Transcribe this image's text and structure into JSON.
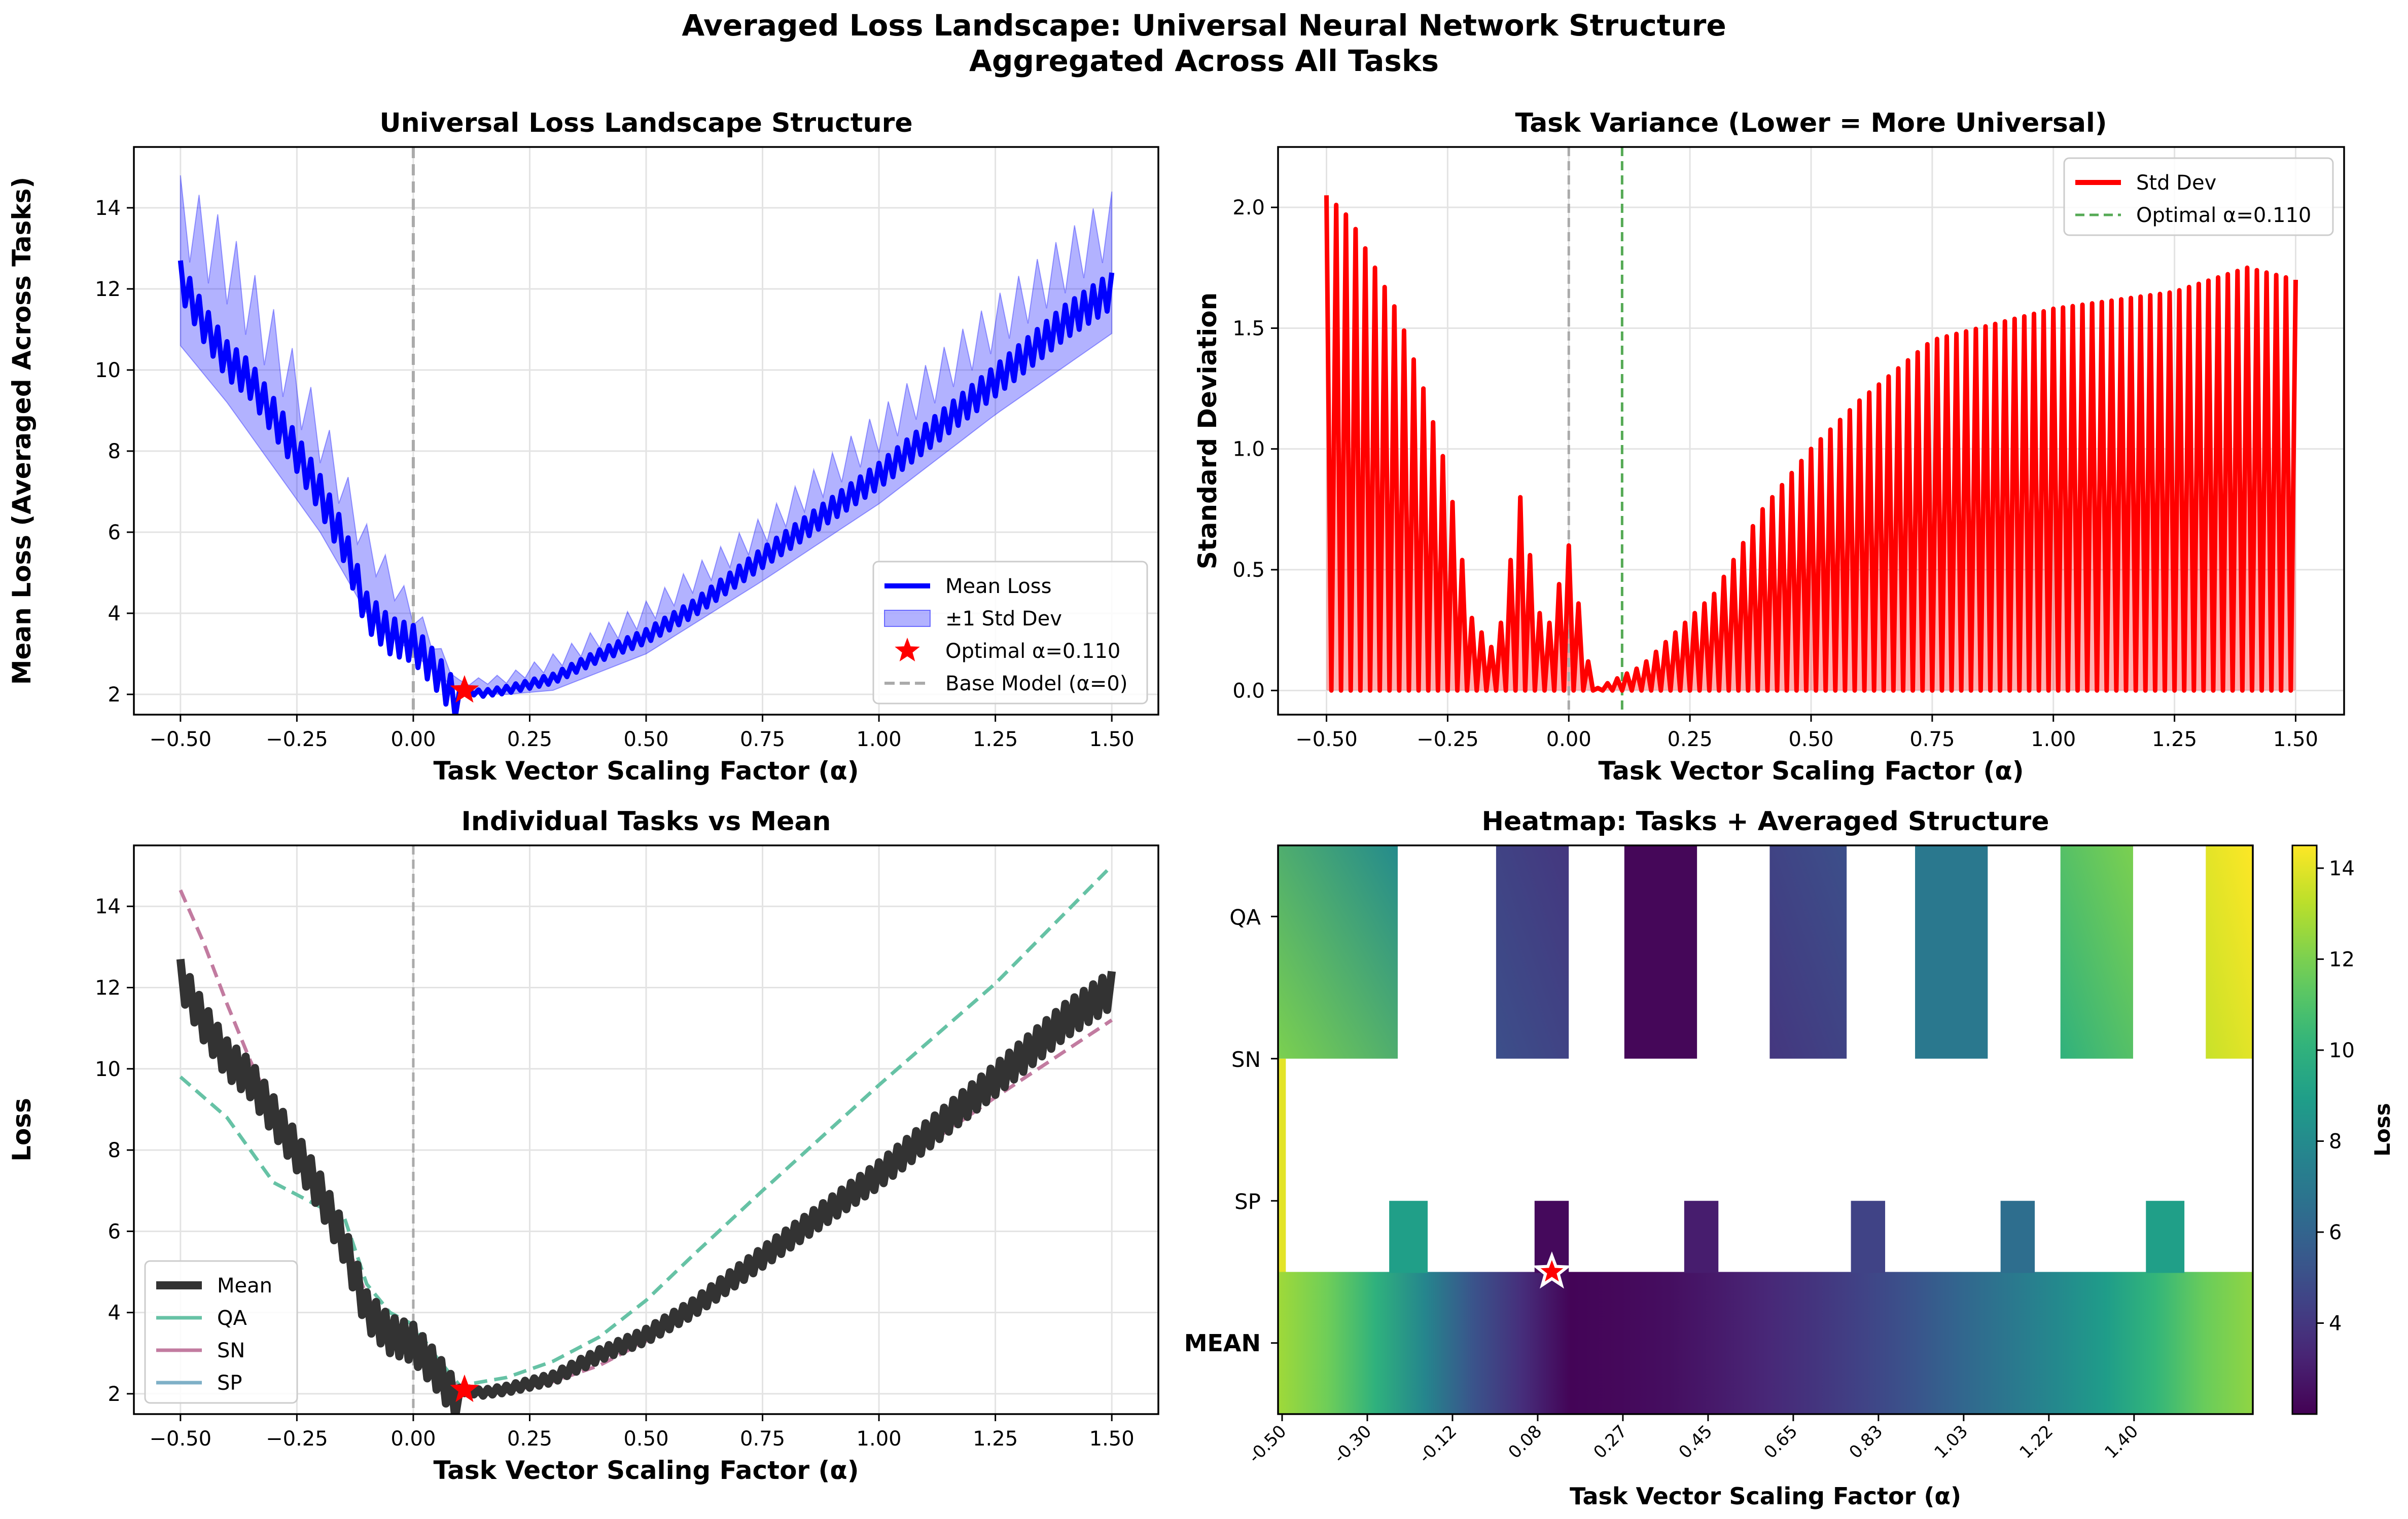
{
  "figure": {
    "title_line1": "Averaged Loss Landscape: Universal Neural Network Structure",
    "title_line2": "Aggregated Across All Tasks"
  },
  "chart_data": [
    {
      "type": "line",
      "title": "Universal Loss Landscape Structure",
      "xlabel": "Task Vector Scaling Factor (α)",
      "ylabel": "Mean Loss (Averaged Across Tasks)",
      "xlim": [
        -0.6,
        1.6
      ],
      "ylim": [
        1.5,
        15.5
      ],
      "xticks": [
        -0.5,
        -0.25,
        0.0,
        0.25,
        0.5,
        0.75,
        1.0,
        1.25,
        1.5
      ],
      "xtick_labels": [
        "−0.50",
        "−0.25",
        "0.00",
        "0.25",
        "0.50",
        "0.75",
        "1.00",
        "1.25",
        "1.50"
      ],
      "yticks": [
        2,
        4,
        6,
        8,
        10,
        12,
        14
      ],
      "ytick_labels": [
        "2",
        "4",
        "6",
        "8",
        "10",
        "12",
        "14"
      ],
      "grid": true,
      "legend_position": "lower-right",
      "series": [
        {
          "name": "Mean Loss",
          "color": "#0000ff",
          "style": "solid",
          "x": [
            -0.5,
            -0.45,
            -0.4,
            -0.35,
            -0.3,
            -0.25,
            -0.2,
            -0.15,
            -0.1,
            -0.05,
            0.0,
            0.05,
            0.1,
            0.15,
            0.2,
            0.3,
            0.4,
            0.5,
            0.6,
            0.75,
            1.0,
            1.25,
            1.4,
            1.5
          ],
          "y": [
            12.7,
            11.6,
            10.7,
            10.2,
            9.3,
            8.4,
            7.4,
            6.2,
            4.5,
            3.9,
            3.7,
            3.0,
            2.15,
            2.1,
            2.2,
            2.5,
            3.1,
            3.6,
            4.3,
            5.6,
            7.7,
            10.1,
            11.6,
            12.4
          ]
        },
        {
          "name": "±1 Std Dev",
          "color": "#0000ff",
          "style": "band",
          "x": [
            -0.5,
            -0.4,
            -0.3,
            -0.2,
            -0.1,
            0.0,
            0.1,
            0.2,
            0.3,
            0.5,
            0.75,
            1.0,
            1.25,
            1.5
          ],
          "upper": [
            14.8,
            13.6,
            11.5,
            9.1,
            6.2,
            4.3,
            2.35,
            2.5,
            3.0,
            4.3,
            6.4,
            9.0,
            11.8,
            14.4
          ],
          "lower": [
            10.6,
            9.2,
            7.6,
            6.0,
            4.0,
            3.0,
            2.05,
            2.0,
            2.1,
            3.0,
            4.8,
            6.7,
            8.9,
            10.9
          ]
        },
        {
          "name": "Optimal α=0.110",
          "color": "#ff0000",
          "style": "star",
          "x": [
            0.11
          ],
          "y": [
            2.1
          ]
        },
        {
          "name": "Base Model (α=0)",
          "color": "#aaaaaa",
          "style": "dashed-vline",
          "x": [
            0.0
          ]
        }
      ]
    },
    {
      "type": "area",
      "title": "Task Variance (Lower = More Universal)",
      "xlabel": "Task Vector Scaling Factor (α)",
      "ylabel": "Standard Deviation",
      "xlim": [
        -0.6,
        1.6
      ],
      "ylim": [
        -0.1,
        2.25
      ],
      "xticks": [
        -0.5,
        -0.25,
        0.0,
        0.25,
        0.5,
        0.75,
        1.0,
        1.25,
        1.5
      ],
      "xtick_labels": [
        "−0.50",
        "−0.25",
        "0.00",
        "0.25",
        "0.50",
        "0.75",
        "1.00",
        "1.25",
        "1.50"
      ],
      "yticks": [
        0.0,
        0.5,
        1.0,
        1.5,
        2.0
      ],
      "ytick_labels": [
        "0.0",
        "0.5",
        "1.0",
        "1.5",
        "2.0"
      ],
      "grid": true,
      "legend_position": "top-right",
      "series": [
        {
          "name": "Std Dev",
          "color": "#ff0000",
          "style": "spiky-area",
          "x": [
            -0.5,
            -0.45,
            -0.4,
            -0.35,
            -0.3,
            -0.25,
            -0.2,
            -0.15,
            -0.1,
            -0.05,
            0.0,
            0.05,
            0.1,
            0.15,
            0.2,
            0.3,
            0.4,
            0.5,
            0.6,
            0.75,
            1.0,
            1.25,
            1.4,
            1.5
          ],
          "y": [
            2.05,
            1.95,
            1.75,
            1.55,
            1.25,
            0.9,
            0.3,
            0.15,
            0.8,
            0.2,
            0.6,
            0.0,
            0.05,
            0.1,
            0.2,
            0.4,
            0.75,
            1.0,
            1.2,
            1.45,
            1.58,
            1.65,
            1.75,
            1.7
          ]
        },
        {
          "name": "Optimal α=0.110",
          "color": "#55aa55",
          "style": "dashed-vline",
          "x": [
            0.11
          ]
        }
      ]
    },
    {
      "type": "line",
      "title": "Individual Tasks vs Mean",
      "xlabel": "Task Vector Scaling Factor (α)",
      "ylabel": "Loss",
      "xlim": [
        -0.6,
        1.6
      ],
      "ylim": [
        1.5,
        15.5
      ],
      "xticks": [
        -0.5,
        -0.25,
        0.0,
        0.25,
        0.5,
        0.75,
        1.0,
        1.25,
        1.5
      ],
      "xtick_labels": [
        "−0.50",
        "−0.25",
        "0.00",
        "0.25",
        "0.50",
        "0.75",
        "1.00",
        "1.25",
        "1.50"
      ],
      "yticks": [
        2,
        4,
        6,
        8,
        10,
        12,
        14
      ],
      "ytick_labels": [
        "2",
        "4",
        "6",
        "8",
        "10",
        "12",
        "14"
      ],
      "grid": true,
      "legend_position": "lower-left",
      "series": [
        {
          "name": "Mean",
          "color": "#333333",
          "style": "thick",
          "x": [
            -0.5,
            -0.45,
            -0.4,
            -0.35,
            -0.3,
            -0.25,
            -0.2,
            -0.15,
            -0.1,
            -0.05,
            0.0,
            0.05,
            0.1,
            0.15,
            0.2,
            0.3,
            0.4,
            0.5,
            0.6,
            0.75,
            1.0,
            1.25,
            1.4,
            1.5
          ],
          "y": [
            12.7,
            11.6,
            10.7,
            10.2,
            9.3,
            8.4,
            7.4,
            6.2,
            4.5,
            3.9,
            3.7,
            3.0,
            2.15,
            2.1,
            2.2,
            2.5,
            3.1,
            3.6,
            4.3,
            5.6,
            7.7,
            10.1,
            11.6,
            12.4
          ]
        },
        {
          "name": "QA",
          "color": "#66c2a5",
          "style": "dashed",
          "x": [
            -0.5,
            -0.45,
            -0.4,
            -0.35,
            -0.3,
            -0.25,
            -0.2,
            -0.15,
            -0.1,
            -0.05,
            0.0,
            0.05,
            0.1,
            0.2,
            0.3,
            0.4,
            0.5,
            0.6,
            0.75,
            1.0,
            1.25,
            1.5
          ],
          "y": [
            9.8,
            9.3,
            8.8,
            8.0,
            7.2,
            6.9,
            6.6,
            6.4,
            4.7,
            4.0,
            3.7,
            2.9,
            2.2,
            2.4,
            2.8,
            3.4,
            4.3,
            5.4,
            7.0,
            9.6,
            12.1,
            15.0
          ]
        },
        {
          "name": "SN",
          "color": "#c27ba0",
          "style": "dashed",
          "x": [
            -0.5,
            -0.45,
            -0.4,
            -0.35,
            -0.3,
            -0.25,
            -0.2,
            -0.15,
            -0.1,
            -0.05,
            0.0,
            0.05,
            0.1,
            0.2,
            0.3,
            0.4,
            0.5,
            0.6,
            0.75,
            1.0,
            1.25,
            1.5
          ],
          "y": [
            14.4,
            13.1,
            11.6,
            10.2,
            9.0,
            7.9,
            6.9,
            5.9,
            4.4,
            3.6,
            3.5,
            2.8,
            2.1,
            2.05,
            2.3,
            2.7,
            3.3,
            4.1,
            5.3,
            7.3,
            9.3,
            11.2
          ]
        },
        {
          "name": "SP",
          "color": "#7fb0c7",
          "style": "solid",
          "x": [],
          "y": []
        }
      ]
    },
    {
      "type": "heatmap",
      "title": "Heatmap: Tasks + Averaged Structure",
      "xlabel": "Task Vector Scaling Factor (α)",
      "rows": [
        "QA",
        "SN",
        "SP",
        "MEAN"
      ],
      "xtick_labels": [
        "-0.50",
        "-0.30",
        "-0.12",
        "0.08",
        "0.27",
        "0.45",
        "0.65",
        "0.83",
        "1.03",
        "1.22",
        "1.40"
      ],
      "colorbar_label": "Loss",
      "colorbar_ticks": [
        4,
        6,
        8,
        10,
        12,
        14
      ],
      "colorbar_tick_labels": [
        "4",
        "6",
        "8",
        "10",
        "12",
        "14"
      ],
      "vmin": 2.0,
      "vmax": 14.5,
      "colormap": "viridis",
      "marker": {
        "name": "optimal",
        "color": "#ff0000",
        "column_label": "0.08"
      }
    }
  ]
}
